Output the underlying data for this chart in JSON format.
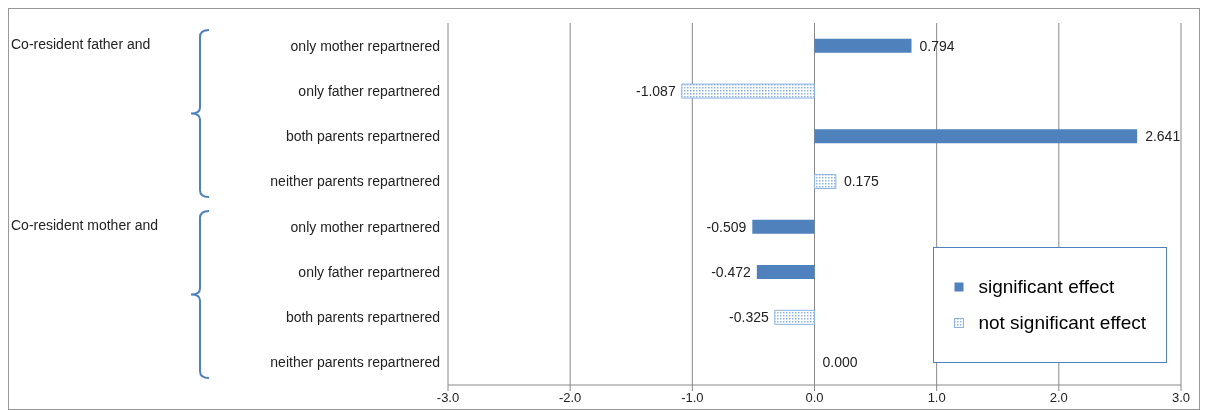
{
  "chart_data": {
    "type": "bar",
    "orientation": "horizontal",
    "stacked": true,
    "categories": [
      "only mother repartnered",
      "only father repartnered",
      "both parents repartnered",
      "neither parents repartnered",
      "only mother repartnered",
      "only father repartnered",
      "both parents repartnered",
      "neither parents repartnered"
    ],
    "series": [
      {
        "name": "significant effect",
        "color": "#4f81bd",
        "values": [
          0.794,
          null,
          2.641,
          null,
          -0.509,
          -0.472,
          null,
          null
        ],
        "value_labels": [
          "0.794",
          null,
          "2.641",
          null,
          "-0.509",
          "-0.472",
          null,
          null
        ]
      },
      {
        "name": "not significant effect",
        "color": "#8db3e2",
        "values": [
          null,
          -1.087,
          null,
          0.175,
          null,
          null,
          -0.325,
          0
        ],
        "value_labels": [
          null,
          "-1.087",
          null,
          "0.175",
          null,
          null,
          "-0.325",
          "0.000"
        ]
      }
    ],
    "xlim": [
      -3,
      3
    ],
    "xticks": [
      {
        "value": -3,
        "label": "-3.0"
      },
      {
        "value": -2,
        "label": "-2.0"
      },
      {
        "value": -1,
        "label": "-1.0"
      },
      {
        "value": 0,
        "label": "0.0"
      },
      {
        "value": 1,
        "label": "1.0"
      },
      {
        "value": 2,
        "label": "2.0"
      },
      {
        "value": 3,
        "label": "3.0"
      }
    ],
    "grid": "x",
    "legend": "bottom right",
    "annotations": [
      "Co-resident father and",
      "Co-resident mother and"
    ]
  }
}
